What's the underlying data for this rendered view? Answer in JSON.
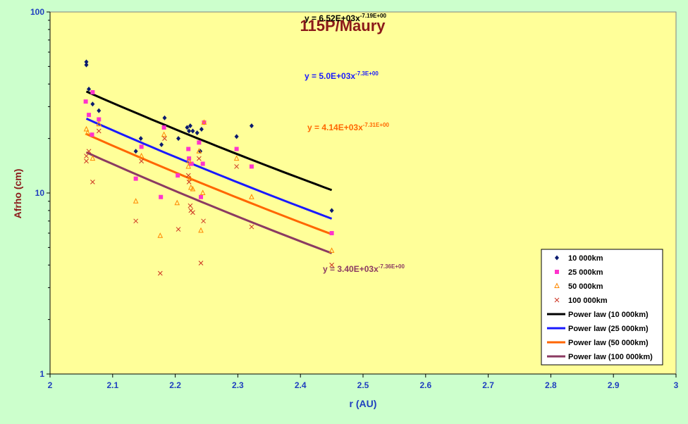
{
  "chart_data": {
    "type": "scatter",
    "title": "115P/Maury",
    "xlabel": "r (AU)",
    "ylabel": "Afrho (cm)",
    "xlim": [
      2,
      3
    ],
    "ylim": [
      1,
      100
    ],
    "yscale": "log",
    "x_ticks": [
      "2",
      "2.1",
      "2.2",
      "2.3",
      "2.4",
      "2.5",
      "2.6",
      "2.7",
      "2.8",
      "2.9",
      "3"
    ],
    "y_ticks": [
      "1",
      "10",
      "100"
    ],
    "legend_position": "right",
    "series": [
      {
        "name": "10 000km",
        "marker": "diamond",
        "color": "#0a1a6e",
        "points": [
          [
            2.058,
            53
          ],
          [
            2.058,
            51
          ],
          [
            2.062,
            37.5
          ],
          [
            2.068,
            31
          ],
          [
            2.078,
            28.5
          ],
          [
            2.137,
            17
          ],
          [
            2.145,
            20
          ],
          [
            2.178,
            18.5
          ],
          [
            2.183,
            26
          ],
          [
            2.205,
            20
          ],
          [
            2.219,
            23
          ],
          [
            2.222,
            22
          ],
          [
            2.224,
            23.5
          ],
          [
            2.228,
            22
          ],
          [
            2.235,
            21.5
          ],
          [
            2.242,
            22.5
          ],
          [
            2.246,
            24.5
          ],
          [
            2.24,
            17
          ],
          [
            2.298,
            20.5
          ],
          [
            2.322,
            23.5
          ],
          [
            2.45,
            8
          ]
        ]
      },
      {
        "name": "25 000km",
        "marker": "square",
        "color": "#ff33cc",
        "points": [
          [
            2.057,
            32
          ],
          [
            2.062,
            27
          ],
          [
            2.067,
            21
          ],
          [
            2.068,
            36
          ],
          [
            2.078,
            25.5
          ],
          [
            2.137,
            12
          ],
          [
            2.146,
            18
          ],
          [
            2.177,
            9.5
          ],
          [
            2.182,
            23
          ],
          [
            2.204,
            12.5
          ],
          [
            2.221,
            17.5
          ],
          [
            2.222,
            15.5
          ],
          [
            2.225,
            14.5
          ],
          [
            2.226,
            14.5
          ],
          [
            2.238,
            19
          ],
          [
            2.241,
            9.5
          ],
          [
            2.244,
            14.5
          ],
          [
            2.246,
            24.5
          ],
          [
            2.298,
            17.5
          ],
          [
            2.322,
            14
          ],
          [
            2.45,
            6
          ]
        ]
      },
      {
        "name": "50 000km",
        "marker": "triangle",
        "color": "#ff8800",
        "points": [
          [
            2.058,
            22.5
          ],
          [
            2.06,
            21.5
          ],
          [
            2.068,
            15.5
          ],
          [
            2.078,
            24
          ],
          [
            2.137,
            9
          ],
          [
            2.146,
            16
          ],
          [
            2.176,
            5.8
          ],
          [
            2.182,
            21
          ],
          [
            2.203,
            8.8
          ],
          [
            2.221,
            14
          ],
          [
            2.222,
            15
          ],
          [
            2.224,
            12
          ],
          [
            2.225,
            10.7
          ],
          [
            2.228,
            10.5
          ],
          [
            2.238,
            17
          ],
          [
            2.241,
            6.2
          ],
          [
            2.244,
            10
          ],
          [
            2.246,
            24.5
          ],
          [
            2.298,
            15.5
          ],
          [
            2.322,
            9.5
          ],
          [
            2.45,
            4.8
          ]
        ]
      },
      {
        "name": "100 000km",
        "marker": "x",
        "color": "#cc3322",
        "points": [
          [
            2.058,
            16
          ],
          [
            2.058,
            15
          ],
          [
            2.062,
            17
          ],
          [
            2.068,
            11.5
          ],
          [
            2.078,
            22
          ],
          [
            2.137,
            7
          ],
          [
            2.146,
            15
          ],
          [
            2.176,
            3.6
          ],
          [
            2.183,
            20
          ],
          [
            2.205,
            6.3
          ],
          [
            2.221,
            12.5
          ],
          [
            2.222,
            11.5
          ],
          [
            2.224,
            8.5
          ],
          [
            2.225,
            8
          ],
          [
            2.228,
            7.8
          ],
          [
            2.238,
            15.5
          ],
          [
            2.241,
            4.1
          ],
          [
            2.245,
            7
          ],
          [
            2.298,
            14
          ],
          [
            2.322,
            6.5
          ],
          [
            2.45,
            4
          ]
        ]
      }
    ],
    "fits": [
      {
        "name": "Power law (10 000km)",
        "color": "#000000",
        "a": 6520,
        "b": -7.19,
        "label": "y = 6.52E+03x",
        "exp": "-7.19E+00",
        "label_color": "#000000"
      },
      {
        "name": "Power law (25 000km)",
        "color": "#1a1aff",
        "a": 5000,
        "b": -7.3,
        "label": "y = 5.0E+03x",
        "exp": "-7.3E+00",
        "label_color": "#1a1aff"
      },
      {
        "name": "Power law (50 000km)",
        "color": "#ff6600",
        "a": 4140,
        "b": -7.31,
        "label": "y = 4.14E+03x",
        "exp": "-7.31E+00",
        "label_color": "#ff6600"
      },
      {
        "name": "Power law (100 000km)",
        "color": "#8b3a62",
        "a": 3400,
        "b": -7.36,
        "label": "y = 3.40E+03x",
        "exp": "-7.36E+00",
        "label_color": "#8b3a62"
      }
    ],
    "fit_range": [
      2.058,
      2.45
    ]
  }
}
